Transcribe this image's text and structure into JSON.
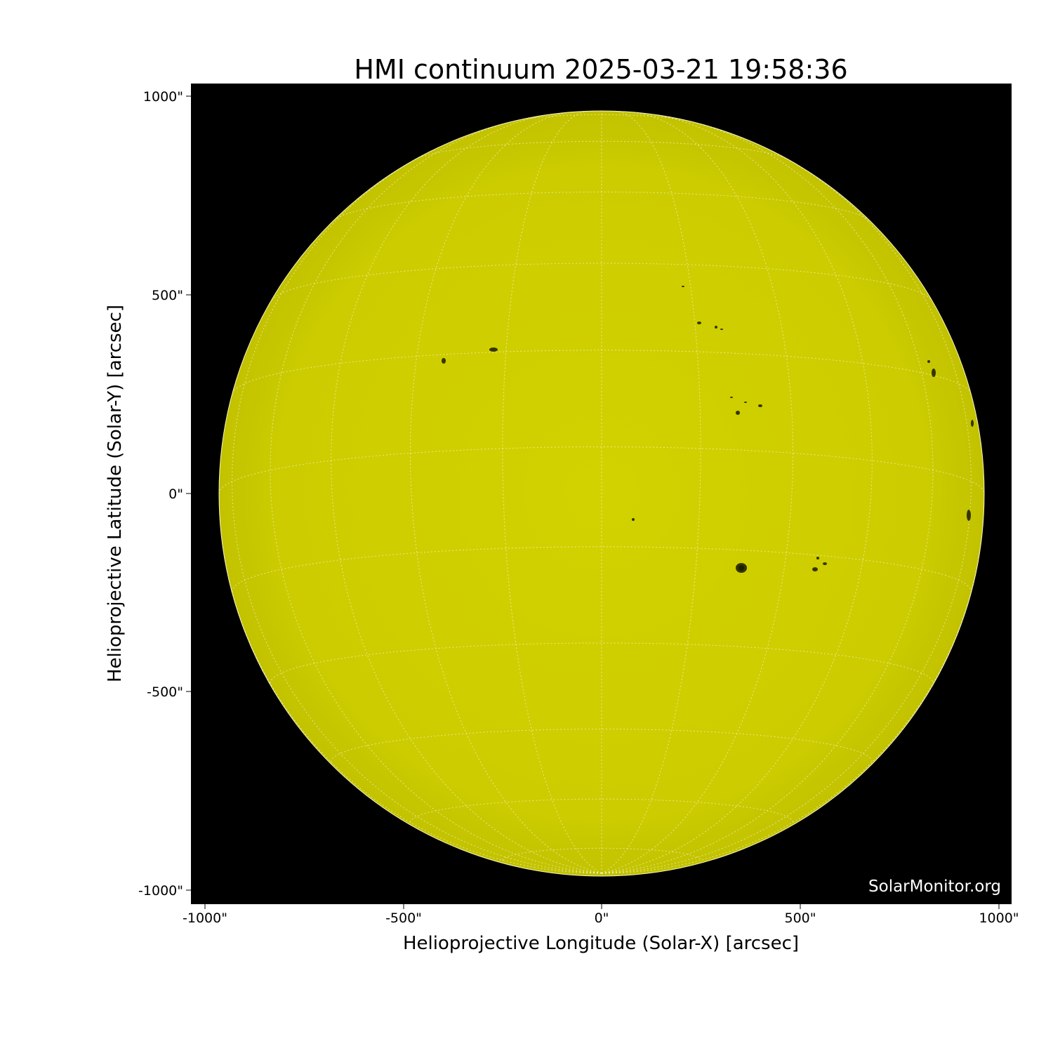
{
  "title": "HMI continuum 2025-03-21 19:58:36",
  "xlabel": "Helioprojective Longitude (Solar-X) [arcsec]",
  "ylabel": "Helioprojective Latitude (Solar-Y) [arcsec]",
  "xticks": [
    "-1000\"",
    "-500\"",
    "0\"",
    "500\"",
    "1000\""
  ],
  "yticks": [
    "1000\"",
    "500\"",
    "0\"",
    "-500\"",
    "-1000\""
  ],
  "watermark": "SolarMonitor.org",
  "colors": {
    "background": "#000000",
    "disk": "#cccc00",
    "grid": "#ffffff"
  },
  "grid": {
    "type": "heliographic",
    "spacing_deg": 15
  }
}
